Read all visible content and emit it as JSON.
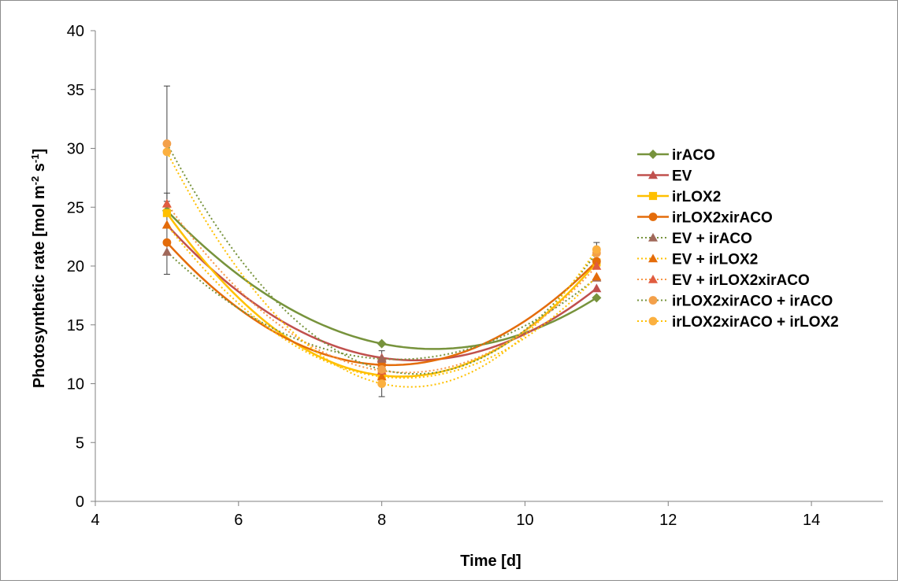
{
  "chart_data": {
    "type": "scatter",
    "title": "",
    "xlabel": "Time [d]",
    "ylabel_main": "Photosynthetic rate  [mol m",
    "ylabel_sup1": "-2",
    "ylabel_mid": " s",
    "ylabel_sup2": "-1",
    "ylabel_end": "]",
    "xlim": [
      4,
      15
    ],
    "ylim": [
      0,
      40
    ],
    "xticks": [
      4,
      6,
      8,
      10,
      12,
      14
    ],
    "yticks": [
      0,
      5,
      10,
      15,
      20,
      25,
      30,
      35,
      40
    ],
    "grid": false,
    "legend_position": "right",
    "x": [
      5,
      8,
      11
    ],
    "series": [
      {
        "name": "irACO",
        "values": [
          24.7,
          13.4,
          17.3
        ],
        "color": "#77933c",
        "marker": "diamond",
        "dash": "solid",
        "smooth": true
      },
      {
        "name": "EV",
        "values": [
          23.5,
          12.2,
          18.1
        ],
        "color": "#c0504d",
        "marker": "triangle",
        "dash": "solid",
        "smooth": true
      },
      {
        "name": "irLOX2",
        "values": [
          24.5,
          10.7,
          20.3
        ],
        "color": "#ffc000",
        "marker": "square",
        "dash": "solid",
        "smooth": true
      },
      {
        "name": "irLOX2xirACO",
        "values": [
          22.0,
          11.6,
          20.4
        ],
        "color": "#e46c0a",
        "marker": "circle",
        "dash": "solid",
        "smooth": true
      },
      {
        "name": "EV + irACO",
        "values": [
          21.2,
          12.1,
          19.0
        ],
        "color": "#77933c",
        "marker_color": "#a0685a",
        "marker": "triangle",
        "dash": "dotted",
        "smooth": true
      },
      {
        "name": "EV + irLOX2",
        "values": [
          23.5,
          10.6,
          19.1
        ],
        "color": "#ffc000",
        "marker_color": "#e46c0a",
        "marker": "triangle",
        "dash": "dotted",
        "smooth": true
      },
      {
        "name": "EV + irLOX2xirACO",
        "values": [
          25.3,
          11.1,
          20.0
        ],
        "color": "#f79646",
        "marker_color": "#e05c40",
        "marker": "triangle",
        "dash": "dotted",
        "smooth": true
      },
      {
        "name": "irLOX2xirACO + irACO",
        "values": [
          30.4,
          11.2,
          21.1
        ],
        "color": "#77933c",
        "marker_color": "#f3a04a",
        "marker": "circle",
        "dash": "dotted",
        "smooth": true
      },
      {
        "name": "irLOX2xirACO + irLOX2",
        "values": [
          29.7,
          10.0,
          21.4
        ],
        "color": "#ffc000",
        "marker_color": "#fbb040",
        "marker": "circle",
        "dash": "dotted",
        "smooth": true
      }
    ],
    "error_bars": [
      {
        "x": 5,
        "low": 25.5,
        "high": 35.3
      },
      {
        "x": 5,
        "low": 19.3,
        "high": 26.2
      },
      {
        "x": 8,
        "low": 8.9,
        "high": 12.8
      },
      {
        "x": 11,
        "low": 20.6,
        "high": 22.0
      }
    ]
  }
}
